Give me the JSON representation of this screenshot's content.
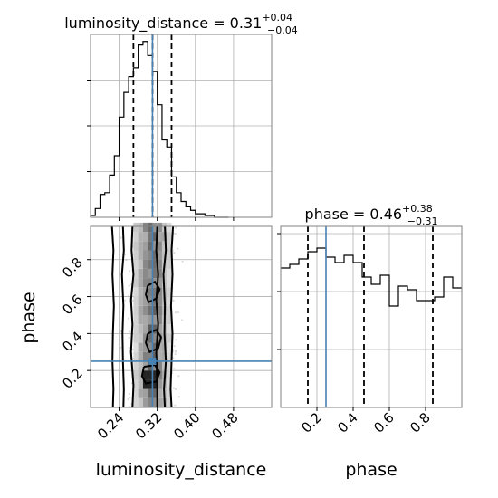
{
  "chart_data": [
    {
      "type": "histogram",
      "panel": "marginal-luminosity_distance",
      "title": {
        "base": "luminosity_distance = 0.31",
        "sup": "+0.04",
        "sub": "−0.04"
      },
      "xlim": [
        0.18,
        0.56
      ],
      "x_ticks": [
        0.24,
        0.32,
        0.4,
        0.48
      ],
      "quantiles": [
        0.27,
        0.31,
        0.35
      ],
      "truth": 0.31,
      "bin_edges": [
        0.18,
        0.19,
        0.2,
        0.21,
        0.22,
        0.23,
        0.24,
        0.25,
        0.26,
        0.27,
        0.28,
        0.29,
        0.3,
        0.31,
        0.32,
        0.33,
        0.34,
        0.35,
        0.36,
        0.37,
        0.38,
        0.39,
        0.4,
        0.41,
        0.42,
        0.43,
        0.44,
        0.45,
        0.46,
        0.47
      ],
      "counts": [
        0.01,
        0.05,
        0.13,
        0.14,
        0.24,
        0.35,
        0.57,
        0.71,
        0.8,
        0.85,
        0.98,
        1.0,
        0.92,
        0.83,
        0.64,
        0.44,
        0.4,
        0.23,
        0.14,
        0.09,
        0.06,
        0.04,
        0.02,
        0.02,
        0.01,
        0.01,
        0.0,
        0.0,
        0.0
      ]
    },
    {
      "type": "histogram",
      "panel": "marginal-phase",
      "title": {
        "base": "phase = 0.46",
        "sup": "+0.38",
        "sub": "−0.31"
      },
      "xlabel": "phase",
      "xlim": [
        0.0,
        1.0
      ],
      "x_ticks": [
        0.2,
        0.4,
        0.6,
        0.8
      ],
      "x_tick_labels": [
        "0.2",
        "0.4",
        "0.6",
        "0.8"
      ],
      "quantiles": [
        0.15,
        0.46,
        0.84
      ],
      "truth": 0.25,
      "bin_edges": [
        0.0,
        0.05,
        0.1,
        0.15,
        0.2,
        0.25,
        0.3,
        0.35,
        0.4,
        0.45,
        0.5,
        0.55,
        0.6,
        0.65,
        0.7,
        0.75,
        0.8,
        0.85,
        0.9,
        0.95,
        1.0
      ],
      "counts": [
        0.77,
        0.79,
        0.82,
        0.86,
        0.88,
        0.83,
        0.8,
        0.84,
        0.8,
        0.72,
        0.68,
        0.73,
        0.56,
        0.67,
        0.65,
        0.59,
        0.59,
        0.61,
        0.72,
        0.66
      ]
    },
    {
      "type": "2d-histogram-contour",
      "panel": "joint-luminosity_distance-phase",
      "xlabel": "luminosity_distance",
      "ylabel": "phase",
      "xlim": [
        0.18,
        0.56
      ],
      "ylim": [
        0.0,
        0.98
      ],
      "x_ticks": [
        0.24,
        0.32,
        0.4,
        0.48
      ],
      "x_tick_labels": [
        "0.24",
        "0.32",
        "0.40",
        "0.48"
      ],
      "y_ticks": [
        0.2,
        0.4,
        0.6,
        0.8
      ],
      "y_tick_labels": [
        "0.2",
        "0.4",
        "0.6",
        "0.8"
      ],
      "truth": {
        "x": 0.31,
        "y": 0.25
      },
      "contours": [
        {
          "level": "outer",
          "segments": [
            {
              "x": [
                0.225,
                0.228,
                0.226,
                0.229,
                0.227,
                0.226,
                0.228,
                0.227
              ],
              "y": [
                0.98,
                0.85,
                0.72,
                0.55,
                0.4,
                0.25,
                0.1,
                0.0
              ]
            },
            {
              "x": [
                0.353,
                0.35,
                0.352,
                0.349,
                0.352,
                0.35,
                0.348,
                0.35
              ],
              "y": [
                0.98,
                0.85,
                0.72,
                0.55,
                0.4,
                0.25,
                0.1,
                0.0
              ]
            }
          ]
        },
        {
          "level": "middle",
          "segments": [
            {
              "x": [
                0.248,
                0.25,
                0.246,
                0.249,
                0.247,
                0.248,
                0.25,
                0.249
              ],
              "y": [
                0.98,
                0.85,
                0.72,
                0.55,
                0.4,
                0.25,
                0.1,
                0.0
              ]
            },
            {
              "x": [
                0.336,
                0.338,
                0.333,
                0.336,
                0.335,
                0.338,
                0.334,
                0.336
              ],
              "y": [
                0.98,
                0.85,
                0.72,
                0.55,
                0.4,
                0.25,
                0.1,
                0.0
              ]
            }
          ]
        },
        {
          "level": "inner",
          "segments": [
            {
              "x": [
                0.268,
                0.266,
                0.27,
                0.265,
                0.268,
                0.265,
                0.27,
                0.268
              ],
              "y": [
                0.98,
                0.85,
                0.72,
                0.58,
                0.45,
                0.3,
                0.12,
                0.0
              ]
            },
            {
              "x": [
                0.32,
                0.318,
                0.322,
                0.318,
                0.322,
                0.318,
                0.32,
                0.32
              ],
              "y": [
                0.98,
                0.85,
                0.72,
                0.58,
                0.45,
                0.3,
                0.12,
                0.0
              ]
            }
          ]
        },
        {
          "level": "blob",
          "segments": [
            {
              "x": [
                0.3,
                0.315,
                0.325,
                0.318,
                0.302,
                0.296,
                0.3
              ],
              "y": [
                0.66,
                0.68,
                0.64,
                0.59,
                0.57,
                0.61,
                0.66
              ]
            },
            {
              "x": [
                0.3,
                0.318,
                0.328,
                0.322,
                0.304,
                0.296,
                0.3
              ],
              "y": [
                0.4,
                0.42,
                0.38,
                0.32,
                0.3,
                0.35,
                0.4
              ]
            },
            {
              "x": [
                0.292,
                0.315,
                0.325,
                0.318,
                0.296,
                0.288,
                0.292
              ],
              "y": [
                0.22,
                0.23,
                0.19,
                0.14,
                0.13,
                0.17,
                0.22
              ]
            }
          ]
        }
      ]
    }
  ],
  "colors": {
    "truth": "#4682b4",
    "line": "#000000",
    "grid": "#b0b0b0",
    "points": "#bdbdbd",
    "axis": "#808080"
  }
}
